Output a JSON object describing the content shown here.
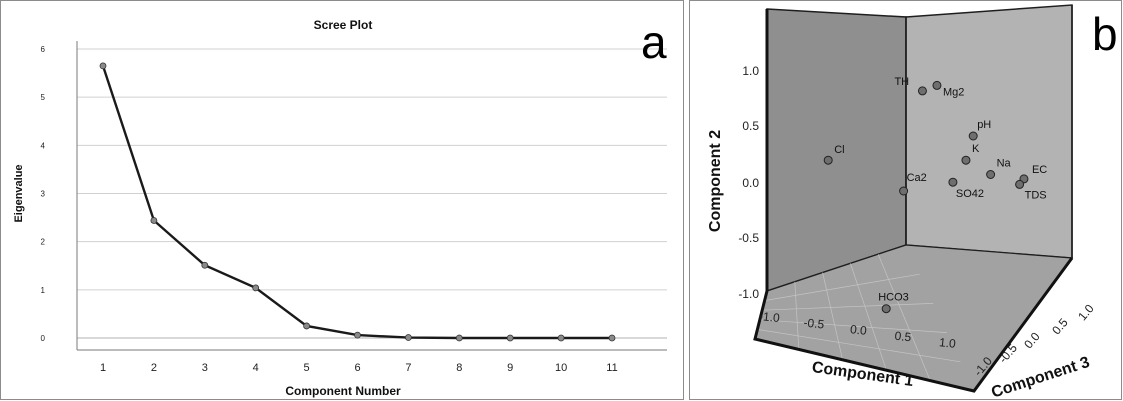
{
  "chart_data": [
    {
      "type": "line",
      "panel_label": "a",
      "title": "Scree Plot",
      "xlabel": "Component Number",
      "ylabel": "Eigenvalue",
      "x": [
        1,
        2,
        3,
        4,
        5,
        6,
        7,
        8,
        9,
        10,
        11
      ],
      "values": [
        5.65,
        2.44,
        1.51,
        1.04,
        0.25,
        0.06,
        0.01,
        0.0,
        0.0,
        0.0,
        0.0
      ],
      "ylim": [
        0,
        6
      ],
      "yticks": [
        0,
        1,
        2,
        3,
        4,
        5,
        6
      ],
      "grid": true,
      "line_color": "#1a1a1a",
      "marker_color": "#8a8a8a"
    },
    {
      "type": "scatter",
      "panel_label": "b",
      "projection": "3d",
      "xlabel": "Component 1",
      "ylabel": "Component 2",
      "zlabel": "Component 3",
      "ylim": [
        -1.0,
        1.0
      ],
      "yticks": [
        "1.0",
        "0.5",
        "0.0",
        "-0.5",
        "-1.0"
      ],
      "xticks": [
        "-1.0",
        "-0.5",
        "0.0",
        "0.5",
        "1.0"
      ],
      "zticks": [
        "1.0",
        "0.5",
        "0.0",
        "-0.5",
        "-1.0"
      ],
      "points": [
        {
          "label": "TH",
          "c1": 0.05,
          "c2": 0.83,
          "c3": -0.2
        },
        {
          "label": "Mg2",
          "c1": 0.15,
          "c2": 0.88,
          "c3": -0.2
        },
        {
          "label": "pH",
          "c1": 0.4,
          "c2": 0.42,
          "c3": -0.2
        },
        {
          "label": "K",
          "c1": 0.35,
          "c2": 0.2,
          "c3": -0.2
        },
        {
          "label": "Na",
          "c1": 0.52,
          "c2": 0.07,
          "c3": -0.2
        },
        {
          "label": "EC",
          "c1": 0.75,
          "c2": 0.03,
          "c3": -0.2
        },
        {
          "label": "TDS",
          "c1": 0.72,
          "c2": -0.02,
          "c3": -0.2
        },
        {
          "label": "SO42",
          "c1": 0.26,
          "c2": 0.0,
          "c3": -0.2
        },
        {
          "label": "Ca2",
          "c1": -0.08,
          "c2": -0.08,
          "c3": -0.2
        },
        {
          "label": "Cl",
          "c1": -0.6,
          "c2": 0.2,
          "c3": -0.2
        },
        {
          "label": "HCO3",
          "c1": -0.2,
          "c2": -1.15,
          "c3": -0.2
        }
      ],
      "marker_color": "#6e6e6e",
      "background_color": "#a9a9a9"
    }
  ]
}
